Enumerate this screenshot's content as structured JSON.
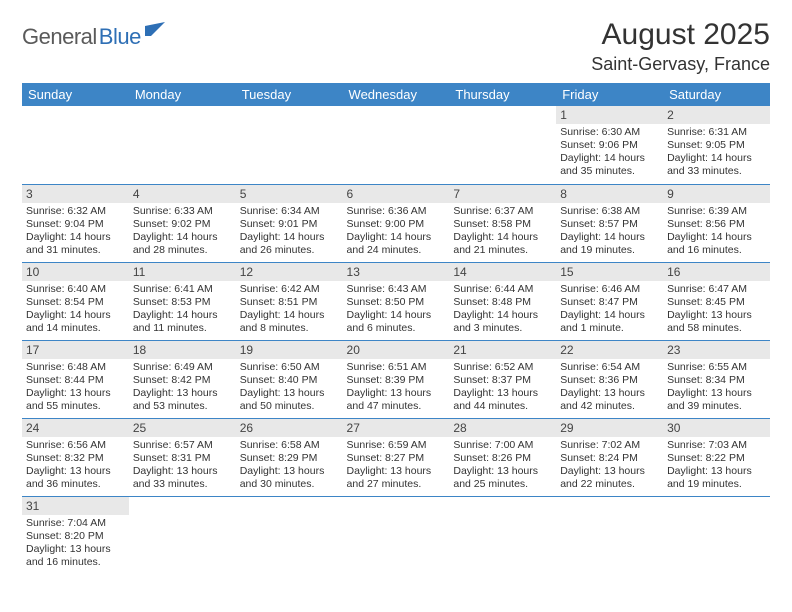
{
  "logo": {
    "part1": "General",
    "part2": "Blue"
  },
  "title": "August 2025",
  "location": "Saint-Gervasy, France",
  "colors": {
    "header_bg": "#3d85c6",
    "header_text": "#ffffff",
    "daynum_bg": "#e8e8e8",
    "border": "#3d85c6",
    "logo_gray": "#5a5a5a",
    "logo_blue": "#2e6fb5"
  },
  "weekdays": [
    "Sunday",
    "Monday",
    "Tuesday",
    "Wednesday",
    "Thursday",
    "Friday",
    "Saturday"
  ],
  "weeks": [
    [
      null,
      null,
      null,
      null,
      null,
      {
        "n": "1",
        "sr": "Sunrise: 6:30 AM",
        "ss": "Sunset: 9:06 PM",
        "dl1": "Daylight: 14 hours",
        "dl2": "and 35 minutes."
      },
      {
        "n": "2",
        "sr": "Sunrise: 6:31 AM",
        "ss": "Sunset: 9:05 PM",
        "dl1": "Daylight: 14 hours",
        "dl2": "and 33 minutes."
      }
    ],
    [
      {
        "n": "3",
        "sr": "Sunrise: 6:32 AM",
        "ss": "Sunset: 9:04 PM",
        "dl1": "Daylight: 14 hours",
        "dl2": "and 31 minutes."
      },
      {
        "n": "4",
        "sr": "Sunrise: 6:33 AM",
        "ss": "Sunset: 9:02 PM",
        "dl1": "Daylight: 14 hours",
        "dl2": "and 28 minutes."
      },
      {
        "n": "5",
        "sr": "Sunrise: 6:34 AM",
        "ss": "Sunset: 9:01 PM",
        "dl1": "Daylight: 14 hours",
        "dl2": "and 26 minutes."
      },
      {
        "n": "6",
        "sr": "Sunrise: 6:36 AM",
        "ss": "Sunset: 9:00 PM",
        "dl1": "Daylight: 14 hours",
        "dl2": "and 24 minutes."
      },
      {
        "n": "7",
        "sr": "Sunrise: 6:37 AM",
        "ss": "Sunset: 8:58 PM",
        "dl1": "Daylight: 14 hours",
        "dl2": "and 21 minutes."
      },
      {
        "n": "8",
        "sr": "Sunrise: 6:38 AM",
        "ss": "Sunset: 8:57 PM",
        "dl1": "Daylight: 14 hours",
        "dl2": "and 19 minutes."
      },
      {
        "n": "9",
        "sr": "Sunrise: 6:39 AM",
        "ss": "Sunset: 8:56 PM",
        "dl1": "Daylight: 14 hours",
        "dl2": "and 16 minutes."
      }
    ],
    [
      {
        "n": "10",
        "sr": "Sunrise: 6:40 AM",
        "ss": "Sunset: 8:54 PM",
        "dl1": "Daylight: 14 hours",
        "dl2": "and 14 minutes."
      },
      {
        "n": "11",
        "sr": "Sunrise: 6:41 AM",
        "ss": "Sunset: 8:53 PM",
        "dl1": "Daylight: 14 hours",
        "dl2": "and 11 minutes."
      },
      {
        "n": "12",
        "sr": "Sunrise: 6:42 AM",
        "ss": "Sunset: 8:51 PM",
        "dl1": "Daylight: 14 hours",
        "dl2": "and 8 minutes."
      },
      {
        "n": "13",
        "sr": "Sunrise: 6:43 AM",
        "ss": "Sunset: 8:50 PM",
        "dl1": "Daylight: 14 hours",
        "dl2": "and 6 minutes."
      },
      {
        "n": "14",
        "sr": "Sunrise: 6:44 AM",
        "ss": "Sunset: 8:48 PM",
        "dl1": "Daylight: 14 hours",
        "dl2": "and 3 minutes."
      },
      {
        "n": "15",
        "sr": "Sunrise: 6:46 AM",
        "ss": "Sunset: 8:47 PM",
        "dl1": "Daylight: 14 hours",
        "dl2": "and 1 minute."
      },
      {
        "n": "16",
        "sr": "Sunrise: 6:47 AM",
        "ss": "Sunset: 8:45 PM",
        "dl1": "Daylight: 13 hours",
        "dl2": "and 58 minutes."
      }
    ],
    [
      {
        "n": "17",
        "sr": "Sunrise: 6:48 AM",
        "ss": "Sunset: 8:44 PM",
        "dl1": "Daylight: 13 hours",
        "dl2": "and 55 minutes."
      },
      {
        "n": "18",
        "sr": "Sunrise: 6:49 AM",
        "ss": "Sunset: 8:42 PM",
        "dl1": "Daylight: 13 hours",
        "dl2": "and 53 minutes."
      },
      {
        "n": "19",
        "sr": "Sunrise: 6:50 AM",
        "ss": "Sunset: 8:40 PM",
        "dl1": "Daylight: 13 hours",
        "dl2": "and 50 minutes."
      },
      {
        "n": "20",
        "sr": "Sunrise: 6:51 AM",
        "ss": "Sunset: 8:39 PM",
        "dl1": "Daylight: 13 hours",
        "dl2": "and 47 minutes."
      },
      {
        "n": "21",
        "sr": "Sunrise: 6:52 AM",
        "ss": "Sunset: 8:37 PM",
        "dl1": "Daylight: 13 hours",
        "dl2": "and 44 minutes."
      },
      {
        "n": "22",
        "sr": "Sunrise: 6:54 AM",
        "ss": "Sunset: 8:36 PM",
        "dl1": "Daylight: 13 hours",
        "dl2": "and 42 minutes."
      },
      {
        "n": "23",
        "sr": "Sunrise: 6:55 AM",
        "ss": "Sunset: 8:34 PM",
        "dl1": "Daylight: 13 hours",
        "dl2": "and 39 minutes."
      }
    ],
    [
      {
        "n": "24",
        "sr": "Sunrise: 6:56 AM",
        "ss": "Sunset: 8:32 PM",
        "dl1": "Daylight: 13 hours",
        "dl2": "and 36 minutes."
      },
      {
        "n": "25",
        "sr": "Sunrise: 6:57 AM",
        "ss": "Sunset: 8:31 PM",
        "dl1": "Daylight: 13 hours",
        "dl2": "and 33 minutes."
      },
      {
        "n": "26",
        "sr": "Sunrise: 6:58 AM",
        "ss": "Sunset: 8:29 PM",
        "dl1": "Daylight: 13 hours",
        "dl2": "and 30 minutes."
      },
      {
        "n": "27",
        "sr": "Sunrise: 6:59 AM",
        "ss": "Sunset: 8:27 PM",
        "dl1": "Daylight: 13 hours",
        "dl2": "and 27 minutes."
      },
      {
        "n": "28",
        "sr": "Sunrise: 7:00 AM",
        "ss": "Sunset: 8:26 PM",
        "dl1": "Daylight: 13 hours",
        "dl2": "and 25 minutes."
      },
      {
        "n": "29",
        "sr": "Sunrise: 7:02 AM",
        "ss": "Sunset: 8:24 PM",
        "dl1": "Daylight: 13 hours",
        "dl2": "and 22 minutes."
      },
      {
        "n": "30",
        "sr": "Sunrise: 7:03 AM",
        "ss": "Sunset: 8:22 PM",
        "dl1": "Daylight: 13 hours",
        "dl2": "and 19 minutes."
      }
    ],
    [
      {
        "n": "31",
        "sr": "Sunrise: 7:04 AM",
        "ss": "Sunset: 8:20 PM",
        "dl1": "Daylight: 13 hours",
        "dl2": "and 16 minutes."
      },
      null,
      null,
      null,
      null,
      null,
      null
    ]
  ]
}
